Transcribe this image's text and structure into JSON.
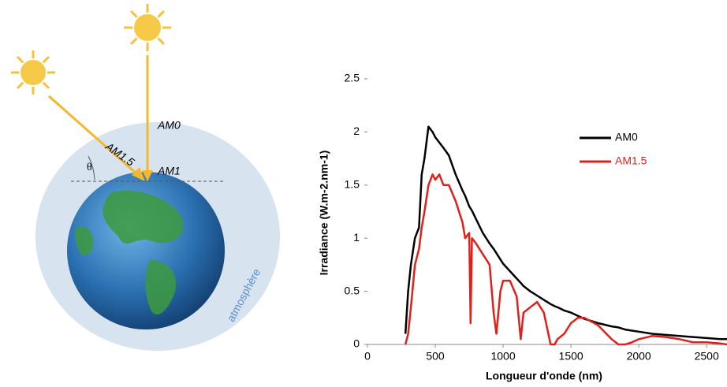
{
  "chart_data": {
    "type": "line",
    "x_label": "Longueur d'onde (nm)",
    "y_label": "Irradiance (W.m-2.nm-1)",
    "x": [
      280,
      300,
      320,
      350,
      380,
      400,
      420,
      450,
      480,
      500,
      530,
      560,
      600,
      650,
      700,
      720,
      750,
      760,
      770,
      800,
      850,
      900,
      930,
      950,
      980,
      1000,
      1050,
      1100,
      1130,
      1150,
      1200,
      1250,
      1300,
      1350,
      1380,
      1400,
      1450,
      1500,
      1550,
      1600,
      1700,
      1800,
      1850,
      1900,
      1950,
      2000,
      2100,
      2200,
      2300,
      2400,
      2500,
      2600,
      2650
    ],
    "series": [
      {
        "name": "AM0",
        "color": "#000000",
        "values": [
          0.1,
          0.5,
          0.75,
          1.0,
          1.1,
          1.6,
          1.75,
          2.05,
          2.0,
          1.95,
          1.9,
          1.85,
          1.78,
          1.6,
          1.45,
          1.4,
          1.3,
          1.28,
          1.26,
          1.18,
          1.05,
          0.95,
          0.9,
          0.86,
          0.8,
          0.76,
          0.69,
          0.62,
          0.58,
          0.55,
          0.5,
          0.46,
          0.42,
          0.38,
          0.36,
          0.35,
          0.32,
          0.3,
          0.27,
          0.24,
          0.2,
          0.17,
          0.16,
          0.14,
          0.13,
          0.12,
          0.1,
          0.09,
          0.08,
          0.07,
          0.06,
          0.05,
          0.05
        ]
      },
      {
        "name": "AM1.5",
        "color": "#e0201b",
        "values": [
          0,
          0.1,
          0.35,
          0.75,
          0.9,
          1.1,
          1.25,
          1.5,
          1.6,
          1.55,
          1.6,
          1.5,
          1.5,
          1.35,
          1.15,
          1.0,
          1.05,
          0.2,
          1.0,
          0.95,
          0.85,
          0.75,
          0.3,
          0.1,
          0.5,
          0.6,
          0.6,
          0.45,
          0.05,
          0.3,
          0.35,
          0.4,
          0.3,
          0.0,
          0.0,
          0.05,
          0.1,
          0.2,
          0.25,
          0.25,
          0.18,
          0.05,
          0.0,
          0.0,
          0.02,
          0.05,
          0.08,
          0.07,
          0.05,
          0.02,
          0.02,
          0.01,
          0.0
        ]
      }
    ],
    "xlim": [
      0,
      2650
    ],
    "xticks": [
      0,
      500,
      1000,
      1500,
      2000,
      2500
    ],
    "ylim": [
      0,
      2.5
    ],
    "yticks": [
      0,
      0.5,
      1,
      1.5,
      2,
      2.5
    ]
  },
  "diagram": {
    "labels": {
      "am0": "AM0",
      "am15": "AM1.5",
      "am1": "AM1",
      "theta": "θ",
      "atmosphere": "atmosphère"
    }
  }
}
